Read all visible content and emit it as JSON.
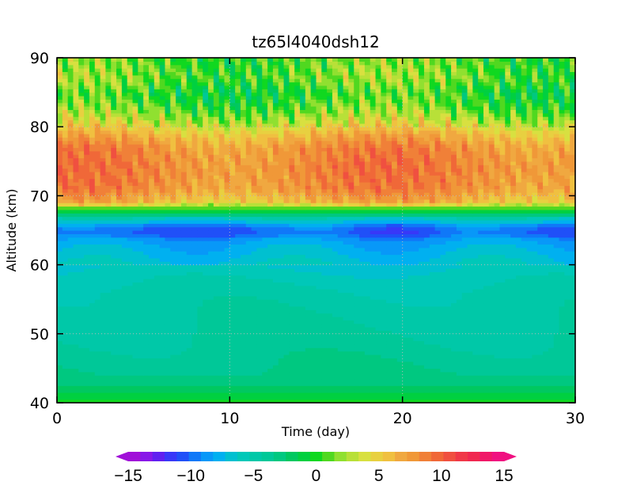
{
  "chart_data": {
    "type": "heatmap",
    "title": "tz65l4040dsh12",
    "xlabel": "Time (day)",
    "ylabel": "Altitude (km)",
    "xlim": [
      0,
      30
    ],
    "ylim": [
      40,
      90
    ],
    "x_ticks": [
      "0",
      "10",
      "20",
      "30"
    ],
    "y_ticks": [
      "40",
      "50",
      "60",
      "70",
      "80",
      "90"
    ],
    "grid": true,
    "z_range": [
      -15,
      15
    ],
    "colorbar": {
      "levels": [
        -15,
        -14,
        -13,
        -12,
        -11,
        -10,
        -9,
        -8,
        -7,
        -6,
        -5,
        -4,
        -3,
        -2,
        -1,
        0,
        1,
        2,
        3,
        4,
        5,
        6,
        7,
        8,
        9,
        10,
        11,
        12,
        13,
        14,
        15
      ],
      "tick_labels": [
        "−15",
        "−10",
        "−5",
        "0",
        "5",
        "10",
        "15"
      ],
      "tick_values": [
        -15,
        -10,
        -5,
        0,
        5,
        10,
        15
      ],
      "colors": [
        "#a010d8",
        "#8818e8",
        "#6020f0",
        "#3838f8",
        "#2050f8",
        "#1078f8",
        "#0898f8",
        "#00b0f0",
        "#00c0d0",
        "#00c8b8",
        "#00c8a8",
        "#00c898",
        "#00c880",
        "#00c860",
        "#00d040",
        "#10d820",
        "#50d820",
        "#90e030",
        "#b8e038",
        "#d8e040",
        "#e8d040",
        "#f0c040",
        "#f0a840",
        "#f09838",
        "#f08038",
        "#f06838",
        "#f05040",
        "#f03848",
        "#f02850",
        "#f01868",
        "#f01080"
      ],
      "extend": "both"
    },
    "field_profile": {
      "altitudes": [
        40,
        41,
        42,
        43,
        45,
        48,
        52,
        56,
        59,
        61,
        63,
        64,
        65,
        66,
        67,
        67.5,
        68,
        68.5,
        69,
        71,
        74,
        77,
        79,
        81,
        83,
        85,
        87,
        90
      ],
      "values": [
        0,
        -1,
        -2,
        -3,
        -3.5,
        -4,
        -4.5,
        -5,
        -6,
        -7,
        -8,
        -9,
        -10,
        -8,
        -5,
        -1,
        0,
        2,
        6,
        8,
        8.5,
        8,
        6,
        3,
        1,
        0,
        1.5,
        1
      ]
    }
  }
}
